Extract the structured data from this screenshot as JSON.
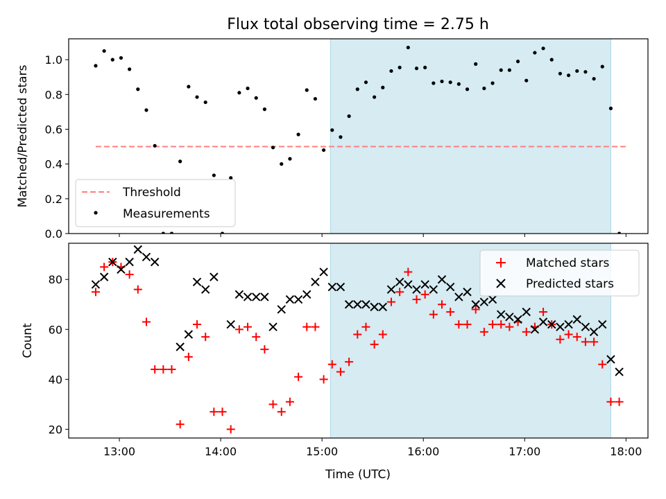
{
  "title": "Flux total observing time = 2.75 h",
  "colors": {
    "shade": "#add8e6",
    "threshold": "#ff7f7f",
    "measurement": "#000000",
    "matched": "#ff0000",
    "predicted": "#000000"
  },
  "chart_data": [
    {
      "type": "scatter",
      "panel": "top",
      "ylabel": "Matched/Predicted stars",
      "xlabel": "",
      "xlim": [
        "12:30",
        "18:13"
      ],
      "ylim": [
        0,
        1.12
      ],
      "yticks": [
        "0.0",
        "0.2",
        "0.4",
        "0.6",
        "0.8",
        "1.0"
      ],
      "shaded_span": [
        "15:05",
        "17:51"
      ],
      "legend": {
        "placement": "lower left",
        "entries": [
          "Threshold",
          "Measurements"
        ]
      },
      "threshold": {
        "name": "Threshold",
        "x": [
          "12:46",
          "18:00"
        ],
        "y": 0.5
      },
      "series": [
        {
          "name": "Measurements",
          "marker": "dot",
          "x": [
            "12:46",
            "12:51",
            "12:56",
            "13:01",
            "13:06",
            "13:11",
            "13:16",
            "13:21",
            "13:26",
            "13:31",
            "13:36",
            "13:41",
            "13:46",
            "13:51",
            "13:56",
            "14:01",
            "14:06",
            "14:11",
            "14:16",
            "14:21",
            "14:26",
            "14:31",
            "14:36",
            "14:41",
            "14:46",
            "14:51",
            "14:56",
            "15:01",
            "15:06",
            "15:11",
            "15:16",
            "15:21",
            "15:26",
            "15:31",
            "15:36",
            "15:41",
            "15:46",
            "15:51",
            "15:56",
            "16:01",
            "16:06",
            "16:11",
            "16:16",
            "16:21",
            "16:26",
            "16:31",
            "16:36",
            "16:41",
            "16:46",
            "16:51",
            "16:56",
            "17:01",
            "17:06",
            "17:11",
            "17:16",
            "17:21",
            "17:26",
            "17:31",
            "17:36",
            "17:41",
            "17:46",
            "17:51",
            "17:56"
          ],
          "y": [
            0.965,
            1.05,
            1.0,
            1.01,
            0.945,
            0.83,
            0.71,
            0.505,
            0.0,
            0.0,
            0.415,
            0.845,
            0.785,
            0.755,
            0.335,
            0.0,
            0.32,
            0.81,
            0.835,
            0.78,
            0.715,
            0.495,
            0.4,
            0.43,
            0.57,
            0.825,
            0.775,
            0.48,
            0.595,
            0.555,
            0.675,
            0.83,
            0.87,
            0.785,
            0.84,
            0.935,
            0.955,
            1.07,
            0.95,
            0.955,
            0.865,
            0.875,
            0.87,
            0.86,
            0.83,
            0.975,
            0.835,
            0.865,
            0.94,
            0.94,
            0.99,
            0.88,
            1.04,
            1.065,
            1.0,
            0.92,
            0.91,
            0.935,
            0.93,
            0.89,
            0.96,
            0.72,
            0.0
          ]
        }
      ]
    },
    {
      "type": "scatter",
      "panel": "bottom",
      "ylabel": "Count",
      "xlabel": "Time (UTC)",
      "xlim": [
        "12:30",
        "18:13"
      ],
      "ylim": [
        16.5,
        94.5
      ],
      "xticks": [
        "13:00",
        "14:00",
        "15:00",
        "16:00",
        "17:00",
        "18:00"
      ],
      "yticks": [
        "20",
        "40",
        "60",
        "80"
      ],
      "shaded_span": [
        "15:05",
        "17:51"
      ],
      "legend": {
        "placement": "upper right",
        "entries": [
          "Matched stars",
          "Predicted stars"
        ]
      },
      "series": [
        {
          "name": "Matched stars",
          "marker": "plus",
          "x": [
            "12:46",
            "12:51",
            "12:56",
            "13:01",
            "13:06",
            "13:11",
            "13:16",
            "13:21",
            "13:26",
            "13:31",
            "13:36",
            "13:41",
            "13:46",
            "13:51",
            "13:56",
            "14:01",
            "14:06",
            "14:11",
            "14:16",
            "14:21",
            "14:26",
            "14:31",
            "14:36",
            "14:41",
            "14:46",
            "14:51",
            "14:56",
            "15:01",
            "15:06",
            "15:11",
            "15:16",
            "15:21",
            "15:26",
            "15:31",
            "15:36",
            "15:41",
            "15:46",
            "15:51",
            "15:56",
            "16:01",
            "16:06",
            "16:11",
            "16:16",
            "16:21",
            "16:26",
            "16:31",
            "16:36",
            "16:41",
            "16:46",
            "16:51",
            "16:56",
            "17:01",
            "17:06",
            "17:11",
            "17:16",
            "17:21",
            "17:26",
            "17:31",
            "17:36",
            "17:41",
            "17:46",
            "17:51",
            "17:56"
          ],
          "y": [
            75,
            85,
            87,
            85,
            82,
            76,
            63,
            44,
            44,
            44,
            22,
            49,
            62,
            57,
            27,
            27,
            20,
            60,
            61,
            57,
            52,
            30,
            27,
            31,
            41,
            61,
            61,
            40,
            46,
            43,
            47,
            58,
            61,
            54,
            58,
            71,
            75,
            83,
            72,
            74,
            66,
            70,
            67,
            62,
            62,
            68,
            59,
            62,
            62,
            61,
            63,
            59,
            61,
            67,
            62,
            56,
            58,
            57,
            55,
            55,
            46,
            31,
            31
          ]
        },
        {
          "name": "Predicted stars",
          "marker": "x",
          "x": [
            "12:46",
            "12:51",
            "12:56",
            "13:01",
            "13:06",
            "13:11",
            "13:16",
            "13:21",
            "13:36",
            "13:41",
            "13:46",
            "13:51",
            "13:56",
            "14:06",
            "14:11",
            "14:16",
            "14:21",
            "14:26",
            "14:31",
            "14:36",
            "14:41",
            "14:46",
            "14:51",
            "14:56",
            "15:01",
            "15:06",
            "15:11",
            "15:16",
            "15:21",
            "15:26",
            "15:31",
            "15:36",
            "15:41",
            "15:46",
            "15:51",
            "15:56",
            "16:01",
            "16:06",
            "16:11",
            "16:16",
            "16:21",
            "16:26",
            "16:31",
            "16:36",
            "16:41",
            "16:46",
            "16:51",
            "16:56",
            "17:01",
            "17:06",
            "17:11",
            "17:16",
            "17:21",
            "17:26",
            "17:31",
            "17:36",
            "17:41",
            "17:46",
            "17:51",
            "17:56"
          ],
          "y": [
            78,
            81,
            87,
            84,
            87,
            92,
            89,
            87,
            53,
            58,
            79,
            76,
            81,
            62,
            74,
            73,
            73,
            73,
            61,
            68,
            72,
            72,
            74,
            79,
            83,
            77,
            77,
            70,
            70,
            70,
            69,
            69,
            76,
            79,
            78,
            76,
            78,
            76,
            80,
            77,
            73,
            75,
            70,
            71,
            72,
            66,
            65,
            64,
            67,
            60,
            63,
            62,
            61,
            62,
            64,
            61,
            59,
            62,
            48,
            43
          ]
        }
      ]
    }
  ]
}
